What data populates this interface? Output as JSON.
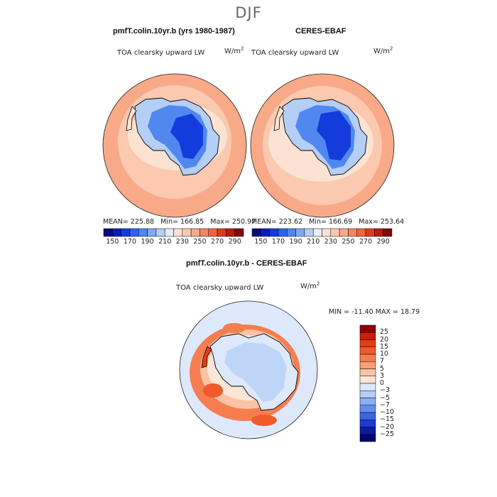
{
  "season": "DJF",
  "panels": [
    {
      "id": "model",
      "title": "pmfT.colin.10yr.b (yrs 1980-1987)",
      "variable": "TOA clearsky upward LW",
      "units_base": "W/m",
      "units_exp": "2",
      "stats": {
        "mean": "225.88",
        "min": "166.85",
        "max": "250.97"
      },
      "stats_labels": {
        "mean": "MEAN=",
        "min": "Min=",
        "max": "Max="
      }
    },
    {
      "id": "obs",
      "title": "CERES-EBAF",
      "variable": "TOA clearsky upward LW",
      "units_base": "W/m",
      "units_exp": "2",
      "stats": {
        "mean": "223.62",
        "min": "166.69",
        "max": "253.64"
      },
      "stats_labels": {
        "mean": "MEAN=",
        "min": "Min=",
        "max": "Max="
      }
    }
  ],
  "top_colorbar": {
    "ticks": [
      "150",
      "170",
      "190",
      "210",
      "230",
      "250",
      "270",
      "290"
    ],
    "colors": [
      "#0a0a80",
      "#0a1ebe",
      "#143cdc",
      "#2864f0",
      "#5088f0",
      "#80aaf0",
      "#b4cef5",
      "#e6eef8",
      "#fbe2d2",
      "#fbc8b0",
      "#f8aa88",
      "#f58764",
      "#f0643c",
      "#dc3c1e",
      "#b41e0a",
      "#820a0a"
    ]
  },
  "diff_panel": {
    "title": "pmfT.colin.10yr.b - CERES-EBAF",
    "variable": "TOA clearsky upward LW",
    "units_base": "W/m",
    "units_exp": "2",
    "minmax_text": "MIN = -11.40 MAX =  18.79"
  },
  "diff_colorbar": {
    "labels": [
      "25",
      "20",
      "15",
      "10",
      "7",
      "5",
      "3",
      "0",
      "−3",
      "−5",
      "−7",
      "−10",
      "−15",
      "−20",
      "−25"
    ],
    "colors": [
      "#8c0000",
      "#c81e0a",
      "#e63c14",
      "#f05a2d",
      "#f57d50",
      "#f8a078",
      "#fac3a5",
      "#fce6d8",
      "#dde9fa",
      "#b4cdf5",
      "#8caff0",
      "#648cf0",
      "#3c64e6",
      "#1e3cd2",
      "#0a1ea0",
      "#05056e"
    ]
  },
  "colors": {
    "ocean_warm": "#f8aa88",
    "ocean_mid": "#fbc8b0",
    "ice_light": "#fbe2d2",
    "antarctica_high": "#143cdc",
    "antarctica_mid": "#5088f0",
    "coast": "#000000",
    "diff_pos": "#f58764",
    "diff_neg": "#b4cdf5"
  }
}
